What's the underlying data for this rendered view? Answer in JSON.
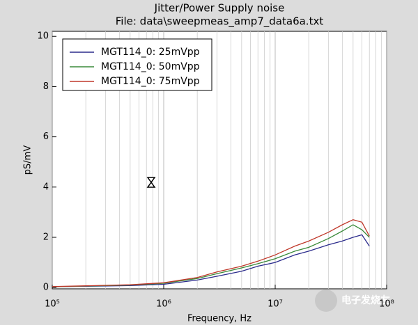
{
  "chart_data": {
    "type": "line",
    "title": "Jitter/Power Supply noise",
    "subtitle": "File: data\\sweepmeas_amp7_data6a.txt",
    "xlabel": "Frequency, Hz",
    "ylabel": "pS/mV",
    "xscale": "log",
    "xlim": [
      100000,
      100000000
    ],
    "xticks": [
      {
        "value": 100000,
        "label": "10⁵"
      },
      {
        "value": 1000000,
        "label": "10⁶"
      },
      {
        "value": 10000000,
        "label": "10⁷"
      },
      {
        "value": 100000000,
        "label": "10⁸"
      }
    ],
    "ylim": [
      -0.05,
      10.2
    ],
    "yticks": [
      0,
      2,
      4,
      6,
      8,
      10
    ],
    "grid_x": true,
    "grid_x_minor": true,
    "legend": "upper-left",
    "x": [
      100000,
      200000,
      500000,
      1000000,
      2000000,
      3000000,
      5000000,
      7000000,
      10000000,
      15000000,
      20000000,
      30000000,
      40000000,
      50000000,
      60000000,
      70000000
    ],
    "series": [
      {
        "name": "MGT114_0: 25mVpp",
        "color": "#2b2b8c",
        "values": [
          0.03,
          0.05,
          0.08,
          0.13,
          0.3,
          0.45,
          0.65,
          0.85,
          1.0,
          1.3,
          1.45,
          1.7,
          1.85,
          2.0,
          2.1,
          1.65
        ]
      },
      {
        "name": "MGT114_0: 50mVpp",
        "color": "#3a8a3a",
        "values": [
          0.03,
          0.06,
          0.1,
          0.17,
          0.36,
          0.55,
          0.78,
          0.95,
          1.15,
          1.45,
          1.6,
          1.95,
          2.25,
          2.5,
          2.3,
          2.0
        ]
      },
      {
        "name": "MGT114_0: 75mVpp",
        "color": "#c0392b",
        "values": [
          0.04,
          0.07,
          0.11,
          0.19,
          0.4,
          0.62,
          0.85,
          1.05,
          1.3,
          1.65,
          1.85,
          2.2,
          2.5,
          2.7,
          2.6,
          2.05
        ]
      }
    ]
  },
  "watermark": "电子发烧友"
}
